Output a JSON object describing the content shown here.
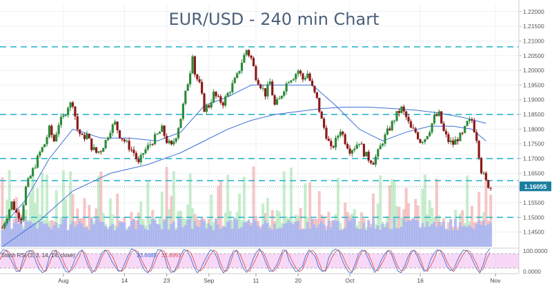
{
  "chart_data": {
    "type": "candlestick",
    "title": "EUR/USD - 240 min Chart",
    "ylim": [
      1.14,
      1.223
    ],
    "y_ticks": [
      "1.22000",
      "1.21500",
      "1.21000",
      "1.20500",
      "1.20000",
      "1.19500",
      "1.19000",
      "1.18500",
      "1.18000",
      "1.17500",
      "1.17000",
      "1.16500",
      "1.16000",
      "1.15500",
      "1.15000",
      "1.14500"
    ],
    "x_ticks": [
      {
        "label": "Aug",
        "day": 0
      },
      {
        "label": "14",
        "day": 13
      },
      {
        "label": "23",
        "day": 22
      },
      {
        "label": "Sep",
        "day": 31
      },
      {
        "label": "11",
        "day": 41
      },
      {
        "label": "20",
        "day": 50
      },
      {
        "label": "Oct",
        "day": 61
      },
      {
        "label": "16",
        "day": 76
      },
      {
        "label": "Nov",
        "day": 92
      }
    ],
    "x_day_range": [
      -13.5,
      97
    ],
    "last_price": "1.16055",
    "resistance_levels": [
      1.208,
      1.185,
      1.17,
      1.1625,
      1.15
    ],
    "dotted_line": 1.16055,
    "price_path": [
      [
        -13,
        1.1465
      ],
      [
        -11,
        1.155
      ],
      [
        -10,
        1.1515
      ],
      [
        -9,
        1.15
      ],
      [
        -8,
        1.16
      ],
      [
        -7,
        1.164
      ],
      [
        -6,
        1.168
      ],
      [
        -5,
        1.172
      ],
      [
        -4,
        1.175
      ],
      [
        -3,
        1.18
      ],
      [
        -2,
        1.176
      ],
      [
        -1,
        1.182
      ],
      [
        0,
        1.184
      ],
      [
        1,
        1.188
      ],
      [
        2,
        1.189
      ],
      [
        3,
        1.18
      ],
      [
        4,
        1.177
      ],
      [
        5,
        1.178
      ],
      [
        6,
        1.174
      ],
      [
        7,
        1.172
      ],
      [
        8,
        1.173
      ],
      [
        9,
        1.176
      ],
      [
        10,
        1.18
      ],
      [
        11,
        1.182
      ],
      [
        12,
        1.178
      ],
      [
        13,
        1.176
      ],
      [
        14,
        1.174
      ],
      [
        15,
        1.172
      ],
      [
        16,
        1.168
      ],
      [
        17,
        1.172
      ],
      [
        18,
        1.174
      ],
      [
        19,
        1.176
      ],
      [
        20,
        1.178
      ],
      [
        21,
        1.18
      ],
      [
        22,
        1.176
      ],
      [
        23,
        1.174
      ],
      [
        24,
        1.178
      ],
      [
        25,
        1.184
      ],
      [
        26,
        1.192
      ],
      [
        27,
        1.2
      ],
      [
        27.5,
        1.206
      ],
      [
        28,
        1.199
      ],
      [
        29,
        1.195
      ],
      [
        30,
        1.187
      ],
      [
        31,
        1.188
      ],
      [
        32,
        1.192
      ],
      [
        33,
        1.19
      ],
      [
        34,
        1.189
      ],
      [
        35,
        1.192
      ],
      [
        36,
        1.195
      ],
      [
        37,
        1.198
      ],
      [
        38,
        1.203
      ],
      [
        39,
        1.207
      ],
      [
        40,
        1.204
      ],
      [
        41,
        1.198
      ],
      [
        42,
        1.195
      ],
      [
        43,
        1.192
      ],
      [
        44,
        1.196
      ],
      [
        45,
        1.188
      ],
      [
        46,
        1.19
      ],
      [
        47,
        1.194
      ],
      [
        48,
        1.197
      ],
      [
        49,
        1.198
      ],
      [
        50,
        1.2
      ],
      [
        51,
        1.197
      ],
      [
        52,
        1.199
      ],
      [
        53,
        1.194
      ],
      [
        54,
        1.19
      ],
      [
        55,
        1.183
      ],
      [
        56,
        1.178
      ],
      [
        57,
        1.173
      ],
      [
        58,
        1.176
      ],
      [
        59,
        1.18
      ],
      [
        60,
        1.176
      ],
      [
        61,
        1.173
      ],
      [
        62,
        1.174
      ],
      [
        63,
        1.176
      ],
      [
        64,
        1.172
      ],
      [
        65,
        1.17
      ],
      [
        66,
        1.169
      ],
      [
        67,
        1.172
      ],
      [
        68,
        1.176
      ],
      [
        69,
        1.179
      ],
      [
        70,
        1.182
      ],
      [
        71,
        1.185
      ],
      [
        72,
        1.187
      ],
      [
        73,
        1.184
      ],
      [
        74,
        1.18
      ],
      [
        75,
        1.179
      ],
      [
        76,
        1.176
      ],
      [
        77,
        1.177
      ],
      [
        78,
        1.18
      ],
      [
        79,
        1.184
      ],
      [
        80,
        1.185
      ],
      [
        81,
        1.179
      ],
      [
        82,
        1.176
      ],
      [
        83,
        1.175
      ],
      [
        84,
        1.177
      ],
      [
        85,
        1.178
      ],
      [
        86,
        1.182
      ],
      [
        87,
        1.183
      ],
      [
        88,
        1.177
      ],
      [
        89,
        1.166
      ],
      [
        90,
        1.162
      ],
      [
        91,
        1.16
      ]
    ],
    "ma_short": [
      [
        -13,
        1.147
      ],
      [
        -8,
        1.156
      ],
      [
        -3,
        1.17
      ],
      [
        2,
        1.18
      ],
      [
        8,
        1.177
      ],
      [
        14,
        1.177
      ],
      [
        20,
        1.176
      ],
      [
        25,
        1.179
      ],
      [
        30,
        1.188
      ],
      [
        35,
        1.191
      ],
      [
        40,
        1.195
      ],
      [
        45,
        1.195
      ],
      [
        50,
        1.195
      ],
      [
        53,
        1.195
      ],
      [
        58,
        1.188
      ],
      [
        63,
        1.18
      ],
      [
        68,
        1.176
      ],
      [
        73,
        1.179
      ],
      [
        78,
        1.181
      ],
      [
        83,
        1.181
      ],
      [
        87,
        1.18
      ],
      [
        90,
        1.176
      ]
    ],
    "ma_long": [
      [
        -13,
        1.14
      ],
      [
        -5,
        1.149
      ],
      [
        2,
        1.159
      ],
      [
        10,
        1.165
      ],
      [
        18,
        1.168
      ],
      [
        25,
        1.172
      ],
      [
        30,
        1.176
      ],
      [
        35,
        1.18
      ],
      [
        40,
        1.183
      ],
      [
        45,
        1.185
      ],
      [
        50,
        1.186
      ],
      [
        55,
        1.187
      ],
      [
        60,
        1.1875
      ],
      [
        65,
        1.1875
      ],
      [
        70,
        1.187
      ],
      [
        75,
        1.1865
      ],
      [
        80,
        1.1855
      ],
      [
        85,
        1.184
      ],
      [
        90,
        1.182
      ]
    ],
    "oscillator": {
      "label": "Stoch RSI (3, 3, 14, 14, close)",
      "value_k": "33.6685",
      "value_d": "31.8991",
      "ylim": [
        0,
        100
      ],
      "levels": [
        80,
        20
      ],
      "axis_labels": [
        "100.0000",
        "0.0000"
      ],
      "colors": {
        "k": "#3a6fd8",
        "d": "#e05050",
        "band": "#f0b8f0"
      }
    },
    "colors": {
      "up_candle": "#2e8b3a",
      "down_candle": "#8b1a1a",
      "ma_short": "#3a6fd8",
      "ma_long": "#3a6fd8",
      "resistance": "#2bb5c8",
      "last_label_bg": "#1b7ea0",
      "volume_blue": "#9aa6e8",
      "volume_red": "#f3b8b8",
      "volume_green": "#b8e8c0"
    }
  }
}
